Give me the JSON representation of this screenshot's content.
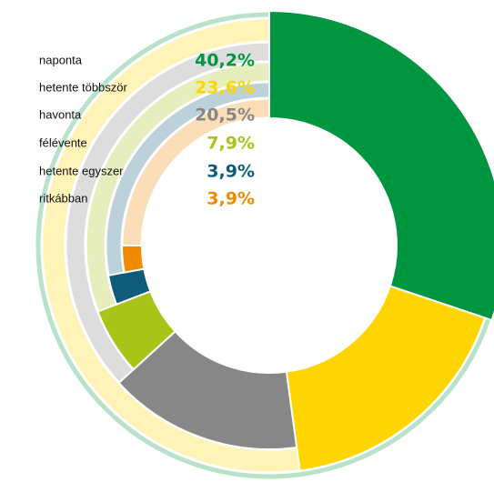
{
  "chart_data": {
    "type": "radial-bar",
    "categories": [
      "naponta",
      "hetente többször",
      "havonta",
      "félévente",
      "hetente egyszer",
      "ritkábban"
    ],
    "values": [
      40.2,
      23.6,
      20.5,
      7.9,
      3.9,
      3.9
    ],
    "value_labels": [
      "40,2%",
      "23,6%",
      "20,5%",
      "7,9%",
      "3,9%",
      "3,9%"
    ],
    "colors": [
      "#009640",
      "#ffd500",
      "#878787",
      "#a8c418",
      "#0f5c7a",
      "#f08a00"
    ]
  }
}
